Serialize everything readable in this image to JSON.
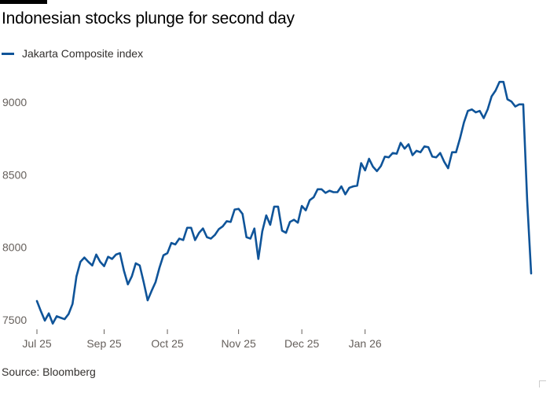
{
  "title": "Indonesian stocks plunge for second day",
  "legend_label": "Jakarta Composite index",
  "source": "Source: Bloomberg",
  "colors": {
    "line": "#0f5499",
    "text": "#66605c",
    "grid": "#e0dcd8"
  },
  "chart_data": {
    "type": "line",
    "title": "Indonesian stocks plunge for second day",
    "xlabel": "",
    "ylabel": "",
    "ylim": [
      7450,
      9200
    ],
    "yticks": [
      7500,
      8000,
      8500,
      9000
    ],
    "x_tick_labels": [
      "Jul 25",
      "Sep 25",
      "Oct 25",
      "Nov 25",
      "Dec 25",
      "Jan 26"
    ],
    "x_tick_index": [
      0,
      17,
      33,
      51,
      67,
      83
    ],
    "grid": false,
    "legend_position": "top-left",
    "series": [
      {
        "name": "Jakarta Composite index",
        "values": [
          7630,
          7560,
          7495,
          7545,
          7475,
          7525,
          7515,
          7505,
          7540,
          7610,
          7800,
          7900,
          7930,
          7900,
          7875,
          7950,
          7900,
          7870,
          7935,
          7920,
          7950,
          7960,
          7840,
          7745,
          7800,
          7890,
          7875,
          7760,
          7635,
          7700,
          7760,
          7860,
          7945,
          7960,
          8030,
          8020,
          8060,
          8050,
          8135,
          8135,
          8050,
          8100,
          8130,
          8070,
          8060,
          8085,
          8125,
          8145,
          8180,
          8175,
          8260,
          8265,
          8230,
          8070,
          8060,
          8130,
          7920,
          8110,
          8220,
          8155,
          8280,
          8280,
          8115,
          8100,
          8175,
          8190,
          8170,
          8285,
          8255,
          8325,
          8345,
          8400,
          8400,
          8375,
          8390,
          8380,
          8380,
          8420,
          8365,
          8410,
          8420,
          8425,
          8580,
          8530,
          8610,
          8555,
          8525,
          8560,
          8625,
          8620,
          8650,
          8645,
          8720,
          8680,
          8710,
          8635,
          8665,
          8655,
          8695,
          8690,
          8625,
          8620,
          8650,
          8590,
          8545,
          8655,
          8655,
          8750,
          8860,
          8940,
          8950,
          8930,
          8940,
          8890,
          8950,
          9040,
          9080,
          9140,
          9140,
          9020,
          9005,
          8970,
          8985,
          8985,
          8320,
          7820
        ]
      }
    ]
  }
}
